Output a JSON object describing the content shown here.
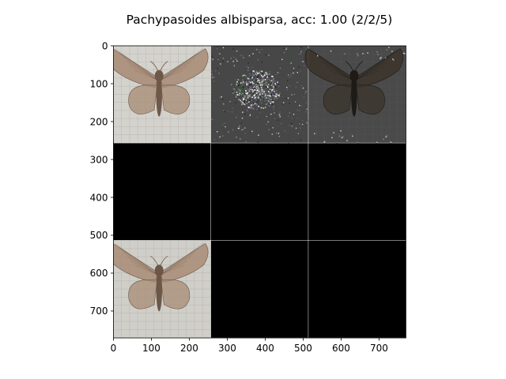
{
  "chart_data": {
    "type": "image_grid",
    "title": "Pachypasoides albisparsa, acc: 1.00 (2/2/5)",
    "xlim": [
      0,
      771
    ],
    "ylim": [
      771,
      0
    ],
    "xticks": [
      0,
      100,
      200,
      300,
      400,
      500,
      600,
      700
    ],
    "yticks": [
      0,
      100,
      200,
      300,
      400,
      500,
      600,
      700
    ],
    "grid": {
      "rows": 3,
      "cols": 3,
      "cell_size": 256,
      "separator": 1,
      "separator_color": "#ffffff"
    },
    "tiles": [
      {
        "row": 0,
        "col": 0,
        "content": "moth-specimen",
        "background": "#d4d2cc",
        "wing_color": "#a78b74",
        "body_color": "#6e5848"
      },
      {
        "row": 0,
        "col": 1,
        "content": "saliency-noise",
        "background": "#474747"
      },
      {
        "row": 0,
        "col": 2,
        "content": "moth-specimen-dark",
        "background": "#4a4a4a",
        "wing_color": "#3b342c",
        "body_color": "#1e1a16"
      },
      {
        "row": 1,
        "col": 0,
        "content": "empty",
        "background": "#000000"
      },
      {
        "row": 1,
        "col": 1,
        "content": "empty",
        "background": "#000000"
      },
      {
        "row": 1,
        "col": 2,
        "content": "empty",
        "background": "#000000"
      },
      {
        "row": 2,
        "col": 0,
        "content": "moth-specimen",
        "background": "#d0cec8",
        "wing_color": "#a88c76",
        "body_color": "#6c5646"
      },
      {
        "row": 2,
        "col": 1,
        "content": "empty",
        "background": "#000000"
      },
      {
        "row": 2,
        "col": 2,
        "content": "empty",
        "background": "#000000"
      }
    ]
  }
}
